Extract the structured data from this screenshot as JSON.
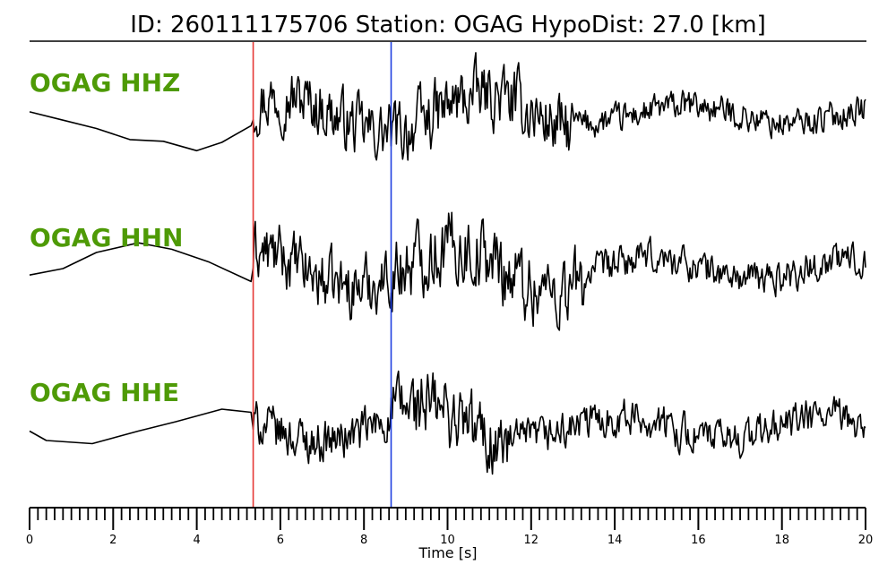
{
  "header": {
    "title": "ID: 260111175706   Station: OGAG   HypoDist:    27.0 [km]"
  },
  "chart_data": {
    "type": "line",
    "xlabel": "Time [s]",
    "xlim": [
      0,
      20
    ],
    "xticks": [
      0,
      2,
      4,
      6,
      8,
      10,
      12,
      14,
      16,
      18,
      20
    ],
    "minor_tick_step": 0.2,
    "markers": [
      {
        "time": 5.35,
        "color": "#e53935"
      },
      {
        "time": 8.65,
        "color": "#1f3fe0"
      }
    ],
    "channels": [
      {
        "name": "OGAG HHZ",
        "pre": [
          [
            0,
            0.05
          ],
          [
            0.8,
            -0.1
          ],
          [
            1.6,
            -0.25
          ],
          [
            2.4,
            -0.45
          ],
          [
            3.2,
            -0.48
          ],
          [
            4.0,
            -0.65
          ],
          [
            4.6,
            -0.5
          ],
          [
            5.3,
            -0.2
          ]
        ],
        "segments": [
          {
            "t0": 5.35,
            "t1": 8.65,
            "amp": 0.92
          },
          {
            "t0": 8.65,
            "t1": 13.0,
            "amp": 1.0
          },
          {
            "t0": 13.0,
            "t1": 20.0,
            "amp": 0.45
          }
        ]
      },
      {
        "name": "OGAG HHN",
        "pre": [
          [
            0,
            -0.1
          ],
          [
            0.8,
            0.0
          ],
          [
            1.6,
            0.25
          ],
          [
            2.6,
            0.4
          ],
          [
            3.4,
            0.3
          ],
          [
            4.3,
            0.1
          ],
          [
            5.3,
            -0.2
          ]
        ],
        "segments": [
          {
            "t0": 5.35,
            "t1": 8.65,
            "amp": 0.8
          },
          {
            "t0": 8.65,
            "t1": 13.3,
            "amp": 1.0
          },
          {
            "t0": 13.3,
            "t1": 20.0,
            "amp": 0.45
          }
        ]
      },
      {
        "name": "OGAG HHE",
        "pre": [
          [
            0,
            -0.05
          ],
          [
            0.4,
            -0.2
          ],
          [
            1.5,
            -0.25
          ],
          [
            2.6,
            -0.05
          ],
          [
            3.5,
            0.1
          ],
          [
            4.6,
            0.3
          ],
          [
            5.3,
            0.25
          ]
        ],
        "segments": [
          {
            "t0": 5.35,
            "t1": 8.65,
            "amp": 0.6
          },
          {
            "t0": 8.65,
            "t1": 11.5,
            "amp": 1.0
          },
          {
            "t0": 11.5,
            "t1": 20.0,
            "amp": 0.5
          }
        ]
      }
    ]
  }
}
